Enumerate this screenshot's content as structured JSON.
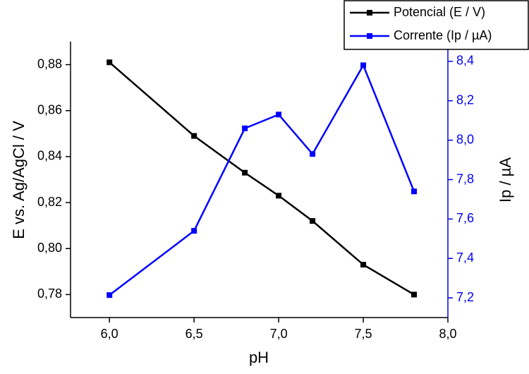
{
  "chart_data": {
    "type": "line",
    "xlabel": "pH",
    "ylabel": "E vs. Ag/AgCl / V",
    "y2label": "Ip / µA",
    "x": [
      6.0,
      6.5,
      6.8,
      7.0,
      7.2,
      7.5,
      7.8
    ],
    "series": [
      {
        "name": "Potencial (E / V)",
        "color": "#000000",
        "values": [
          0.881,
          0.849,
          0.833,
          0.823,
          0.812,
          0.793,
          0.78
        ]
      },
      {
        "name": "Corrente (Ip / µA)",
        "color": "#0000ff",
        "axis": "y2",
        "values": [
          7.214,
          7.54,
          8.06,
          8.13,
          7.93,
          8.38,
          7.74
        ]
      }
    ],
    "xlim": [
      5.77,
      8.0
    ],
    "xticks": [
      {
        "value": 6.0,
        "label": "6,0"
      },
      {
        "value": 6.5,
        "label": "6,5"
      },
      {
        "value": 7.0,
        "label": "7,0"
      },
      {
        "value": 7.5,
        "label": "7,5"
      },
      {
        "value": 8.0,
        "label": "8,0"
      }
    ],
    "ylim": [
      0.77,
      0.89
    ],
    "yticks": [
      {
        "value": 0.78,
        "label": "0,78"
      },
      {
        "value": 0.8,
        "label": "0,80"
      },
      {
        "value": 0.82,
        "label": "0,82"
      },
      {
        "value": 0.84,
        "label": "0,84"
      },
      {
        "value": 0.86,
        "label": "0,86"
      },
      {
        "value": 0.88,
        "label": "0,88"
      }
    ],
    "y2lim": [
      7.1,
      8.5
    ],
    "y2ticks": [
      {
        "value": 7.2,
        "label": "7,2"
      },
      {
        "value": 7.4,
        "label": "7,4"
      },
      {
        "value": 7.6,
        "label": "7,6"
      },
      {
        "value": 7.8,
        "label": "7,8"
      },
      {
        "value": 8.0,
        "label": "8,0"
      },
      {
        "value": 8.2,
        "label": "8,2"
      },
      {
        "value": 8.4,
        "label": "8,4"
      }
    ],
    "y2color": "#0000ff",
    "legend": "top-right"
  }
}
